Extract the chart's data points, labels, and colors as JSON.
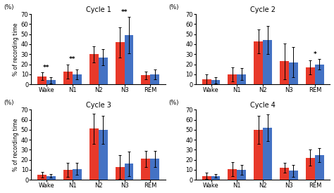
{
  "cycles": [
    "Cycle 1",
    "Cycle 2",
    "Cycle 3",
    "Cycle 4"
  ],
  "categories": [
    "Wake",
    "N1",
    "N2",
    "N3",
    "REM"
  ],
  "red_values": [
    [
      8,
      13,
      30,
      42,
      9
    ],
    [
      5,
      10,
      43,
      23,
      17
    ],
    [
      5,
      10,
      51,
      13,
      21
    ],
    [
      4,
      11,
      50,
      12,
      22
    ]
  ],
  "blue_values": [
    [
      4,
      10,
      27,
      49,
      10
    ],
    [
      4,
      10,
      44,
      22,
      20
    ],
    [
      4,
      11,
      50,
      16,
      21
    ],
    [
      4,
      10,
      52,
      9,
      25
    ]
  ],
  "red_errors": [
    [
      4,
      7,
      8,
      15,
      4
    ],
    [
      5,
      7,
      12,
      18,
      7
    ],
    [
      3,
      7,
      15,
      12,
      8
    ],
    [
      3,
      7,
      14,
      5,
      8
    ]
  ],
  "blue_errors": [
    [
      3,
      5,
      8,
      18,
      5
    ],
    [
      3,
      6,
      14,
      15,
      5
    ],
    [
      2,
      6,
      14,
      12,
      8
    ],
    [
      2,
      5,
      13,
      6,
      7
    ]
  ],
  "significance": [
    {
      "Wake": "**",
      "N1": "**",
      "N3": "**"
    },
    {
      "REM": "*"
    },
    {},
    {}
  ],
  "ylim": [
    0,
    70
  ],
  "yticks": [
    0,
    10,
    20,
    30,
    40,
    50,
    60,
    70
  ],
  "red_color": "#e8392a",
  "blue_color": "#4472c4",
  "ylabel": "% of recording time",
  "bar_width": 0.35,
  "background_color": "#ffffff"
}
